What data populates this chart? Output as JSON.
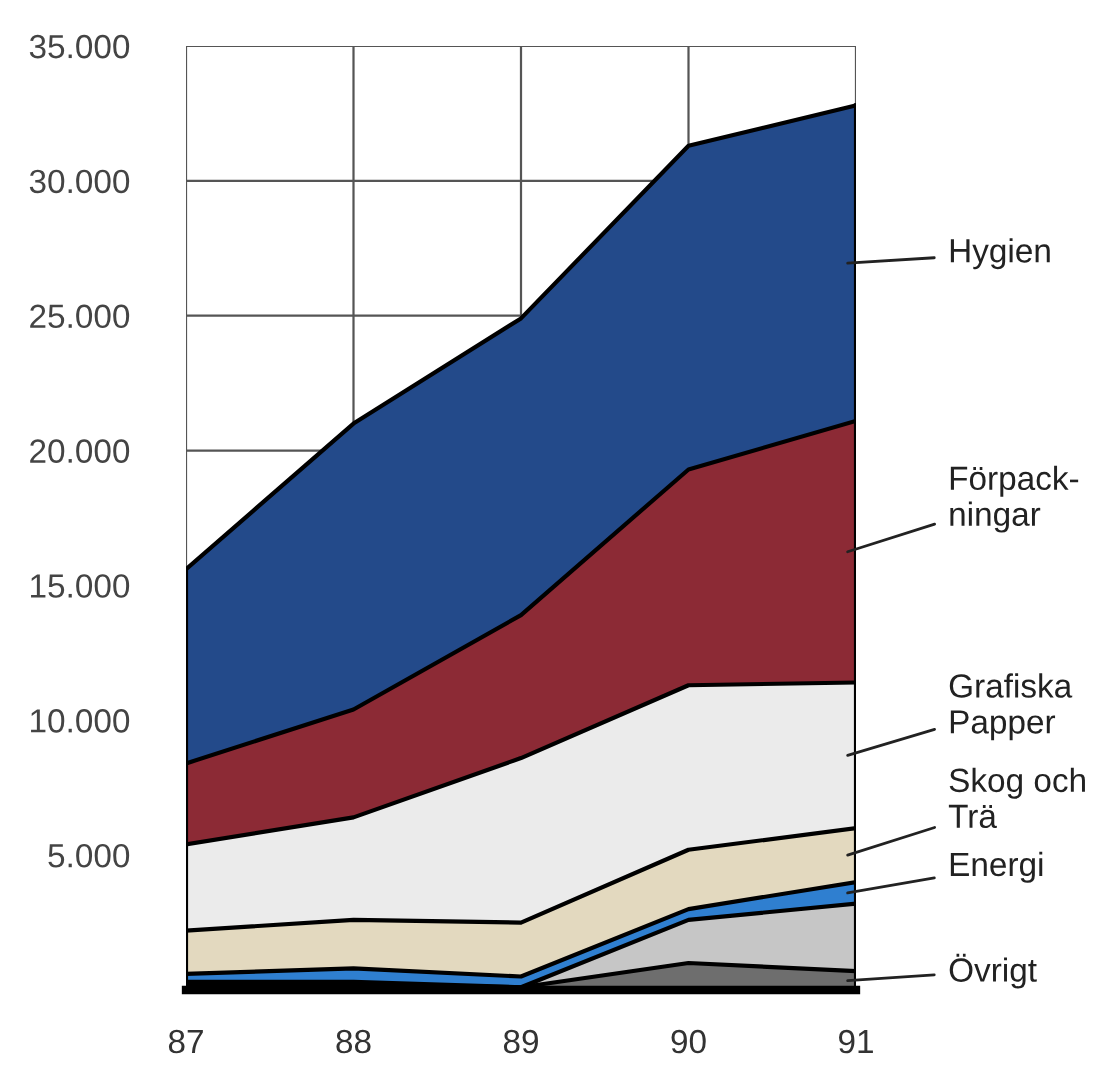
{
  "chart_data": {
    "type": "area",
    "stacked": true,
    "categories": [
      "87",
      "88",
      "89",
      "90",
      "91"
    ],
    "ylim": [
      0,
      35000
    ],
    "yticks": [
      {
        "value": 5000,
        "label": "5.000"
      },
      {
        "value": 10000,
        "label": "10.000"
      },
      {
        "value": 15000,
        "label": "15.000"
      },
      {
        "value": 20000,
        "label": "20.000"
      },
      {
        "value": 25000,
        "label": "25.000"
      },
      {
        "value": 30000,
        "label": "30.000"
      },
      {
        "value": 35000,
        "label": "35.000"
      }
    ],
    "grid": true,
    "series": [
      {
        "name": "Övrigt",
        "color": "#6e6e6e",
        "values": [
          200,
          200,
          100,
          1000,
          700
        ]
      },
      {
        "color": "#c6c6c6",
        "values": [
          100,
          100,
          0,
          1600,
          2500
        ]
      },
      {
        "name": "Energi",
        "color": "#2f7fd0",
        "values": [
          300,
          500,
          400,
          400,
          800
        ]
      },
      {
        "name": "Skog och\nTrä",
        "color": "#e3d9bf",
        "values": [
          1600,
          1800,
          2000,
          2200,
          2000
        ]
      },
      {
        "name": "Grafiska\nPapper",
        "color": "#ebebeb",
        "values": [
          3200,
          3800,
          6100,
          6100,
          5400
        ]
      },
      {
        "name": "Förpack-\nningar",
        "color": "#8c2a35",
        "values": [
          3000,
          4000,
          5300,
          8000,
          9700
        ]
      },
      {
        "name": "Hygien",
        "color": "#234a8a",
        "values": [
          7200,
          10600,
          11000,
          12000,
          11700
        ]
      }
    ]
  }
}
